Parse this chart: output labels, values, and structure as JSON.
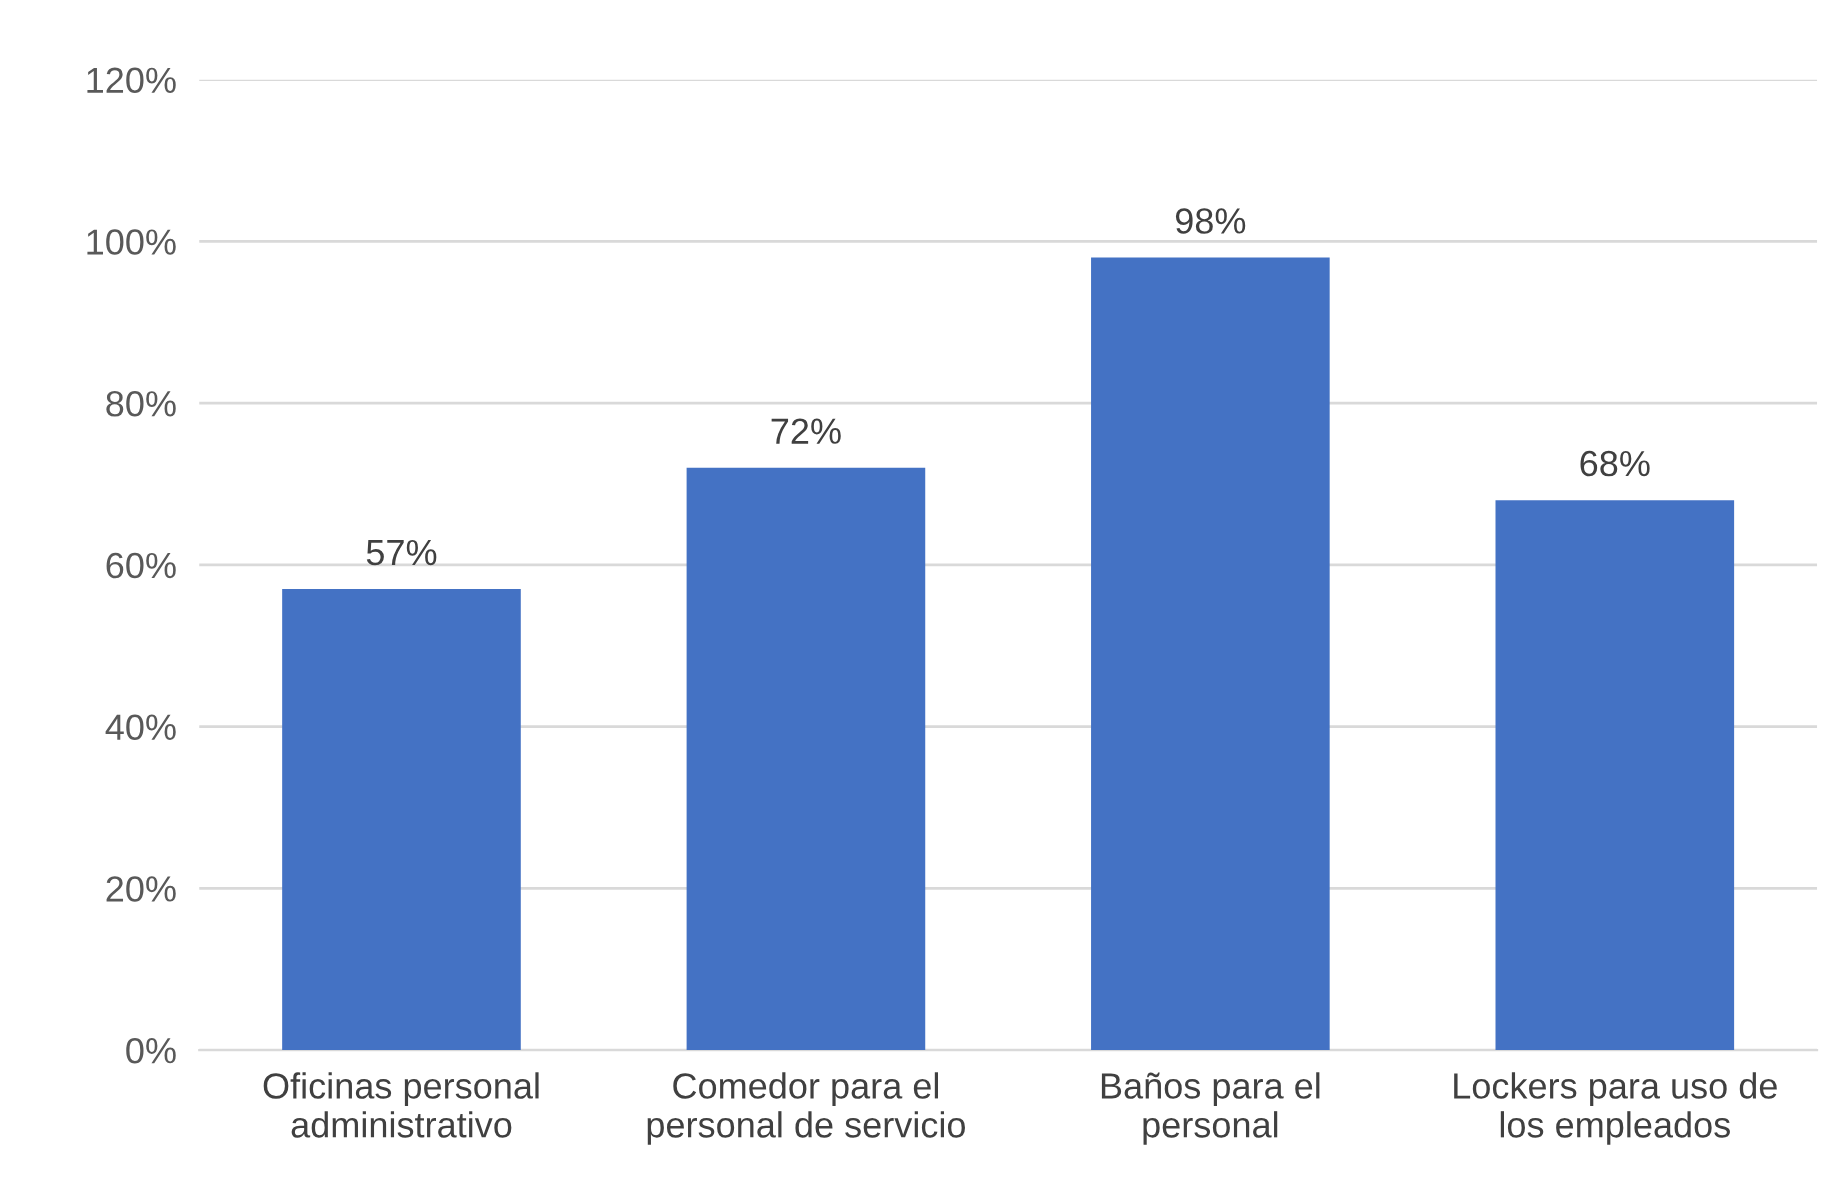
{
  "chart_data": {
    "type": "bar",
    "categories": [
      "Oficinas personal\nadministrativo",
      "Comedor para el\npersonal de servicio",
      "Baños para el\npersonal",
      "Lockers para uso de\nlos empleados"
    ],
    "values": [
      57,
      72,
      98,
      68
    ],
    "value_labels": [
      "57%",
      "72%",
      "98%",
      "68%"
    ],
    "color": "#4472c4",
    "ylim": [
      0,
      120
    ],
    "yticks": [
      {
        "value": 0,
        "label": "0%"
      },
      {
        "value": 20,
        "label": "20%"
      },
      {
        "value": 40,
        "label": "40%"
      },
      {
        "value": 60,
        "label": "60%"
      },
      {
        "value": 80,
        "label": "80%"
      },
      {
        "value": 100,
        "label": "100%"
      },
      {
        "value": 120,
        "label": "120%"
      }
    ],
    "grid": "y",
    "legend": false
  }
}
